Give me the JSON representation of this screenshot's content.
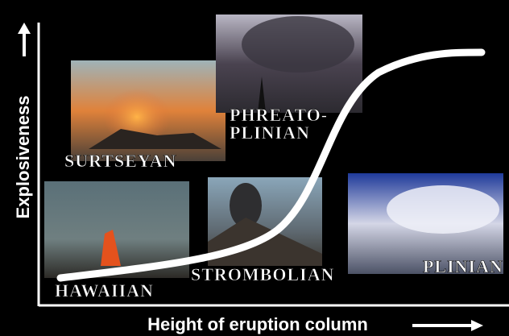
{
  "axes": {
    "y_label": "Explosiveness",
    "x_label": "Height of eruption column"
  },
  "types": [
    {
      "lines": [
        "SURTSEYAN"
      ]
    },
    {
      "lines": [
        "PHREATO-",
        "PLINIAN"
      ]
    },
    {
      "lines": [
        "HAWAIIAN"
      ]
    },
    {
      "lines": [
        "STROMBOLIAN"
      ]
    },
    {
      "lines": [
        "PLINIAN"
      ]
    }
  ]
}
